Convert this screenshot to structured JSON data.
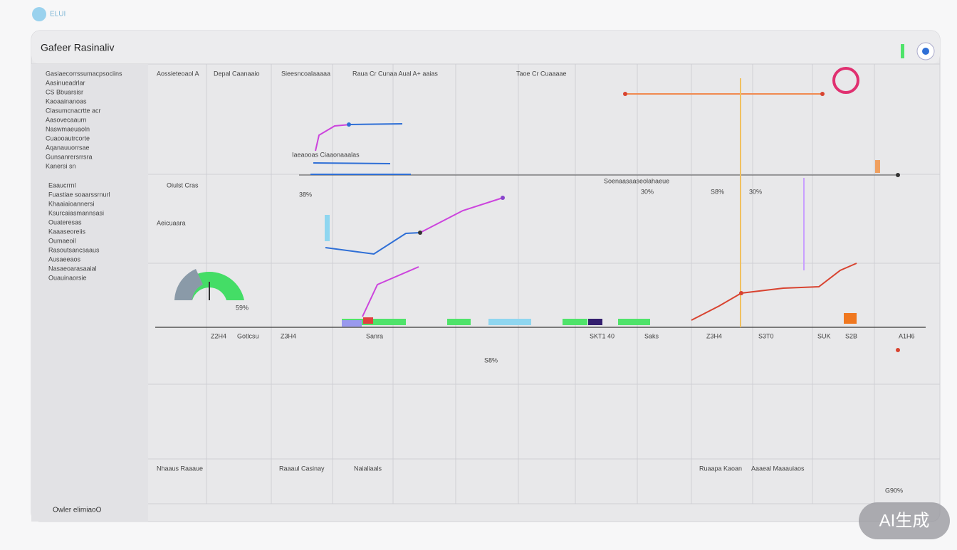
{
  "header": {
    "logo_text": "ELUI",
    "title": "Gafeer Rasinaliv"
  },
  "sidebar": {
    "items": [
      "Gasiaecorrssumacpsociins",
      "Aasinueadrlar",
      "CS Bbuarsisr",
      "Kaoaainanoas",
      "Clasumcnacrtte acr",
      "Aasovecaaurn",
      "Naswmaeuaoln",
      "Cuaooautrcorte",
      "Aqanauuorrsae",
      "Gunsanrersrrsra",
      "Kanersi sn",
      "Eaaucrrnl",
      "Fuastiae soaarssrnurl",
      "Khaaiaioannersi",
      "Ksurcaiasmannsasi",
      "Ouateresas",
      "Kaaaseoreiis",
      "Oumaeoil",
      "Rasoutsancsaaus",
      "Ausaeeaos",
      "Nasaeoarasaaial",
      "Ouauinaorsie"
    ],
    "footer": "Owler elimiaoO"
  },
  "columns": [
    "Aossieteoaol A",
    "Depal Caanaaio",
    "Sieesncoalaaaaa",
    "Raua Cr Cunaa Aual A+ aaias",
    "Taoe Cr Cuaaaae"
  ],
  "panel_labels": [
    "Oiulst Cras",
    "Aeicuaara",
    "Iaeaooas Ciaaonaaalas",
    "Soenaasaaseolahaeue"
  ],
  "values": [
    "38%",
    "30%",
    "S8%",
    "30%",
    "59%",
    "S8%",
    "G90%"
  ],
  "axis_labels": [
    "Z2H4",
    "Gotlcsu",
    "Z3H4",
    "Sanra",
    "SKT1 40",
    "Saks",
    "Z3H4",
    "S3T0",
    "SUK",
    "S2B",
    "A1H6"
  ],
  "footer_labels": [
    "Nhaaus Raaaue",
    "Raaaul Casinay",
    "Naialiaals",
    "Ruaapa Kaoan",
    "Aaaeal Maaauiaos"
  ],
  "watermark": "AI生成"
}
